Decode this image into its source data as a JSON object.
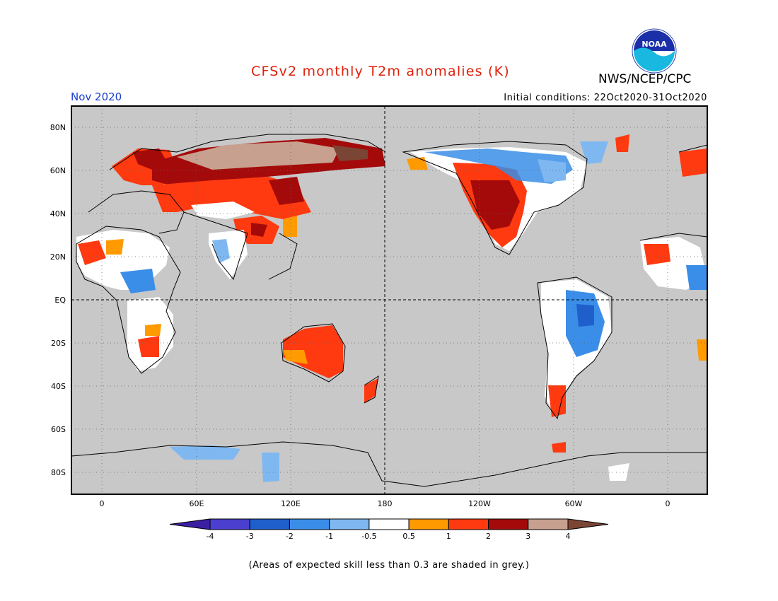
{
  "title": "CFSv2 monthly T2m anomalies (K)",
  "agency": "NWS/NCEP/CPC",
  "logo_text": "NOAA",
  "month": "Nov 2020",
  "initial_conditions": "Initial conditions: 22Oct2020-31Oct2020",
  "lat_labels": [
    "80N",
    "60N",
    "40N",
    "20N",
    "EQ",
    "20S",
    "40S",
    "60S",
    "80S"
  ],
  "lon_labels": [
    "0",
    "60E",
    "120E",
    "180",
    "120W",
    "60W",
    "0"
  ],
  "colorbar": {
    "tick_labels": [
      "-4",
      "-3",
      "-2",
      "-1",
      "-0.5",
      "0.5",
      "1",
      "2",
      "3",
      "4"
    ],
    "colors": [
      "#3b1fa3",
      "#4a3fcf",
      "#1f5fcc",
      "#3a8ee8",
      "#7fb8f0",
      "#ffffff",
      "#ff9a00",
      "#ff3a10",
      "#a40a0a",
      "#c8a08f",
      "#7a4535"
    ]
  },
  "skill_note": "(Areas of expected skill less than 0.3 are shaded in grey.)",
  "colors": {
    "title": "#e0200a",
    "month": "#1c3fd0",
    "ocean_grey": "#c8c8c8"
  }
}
